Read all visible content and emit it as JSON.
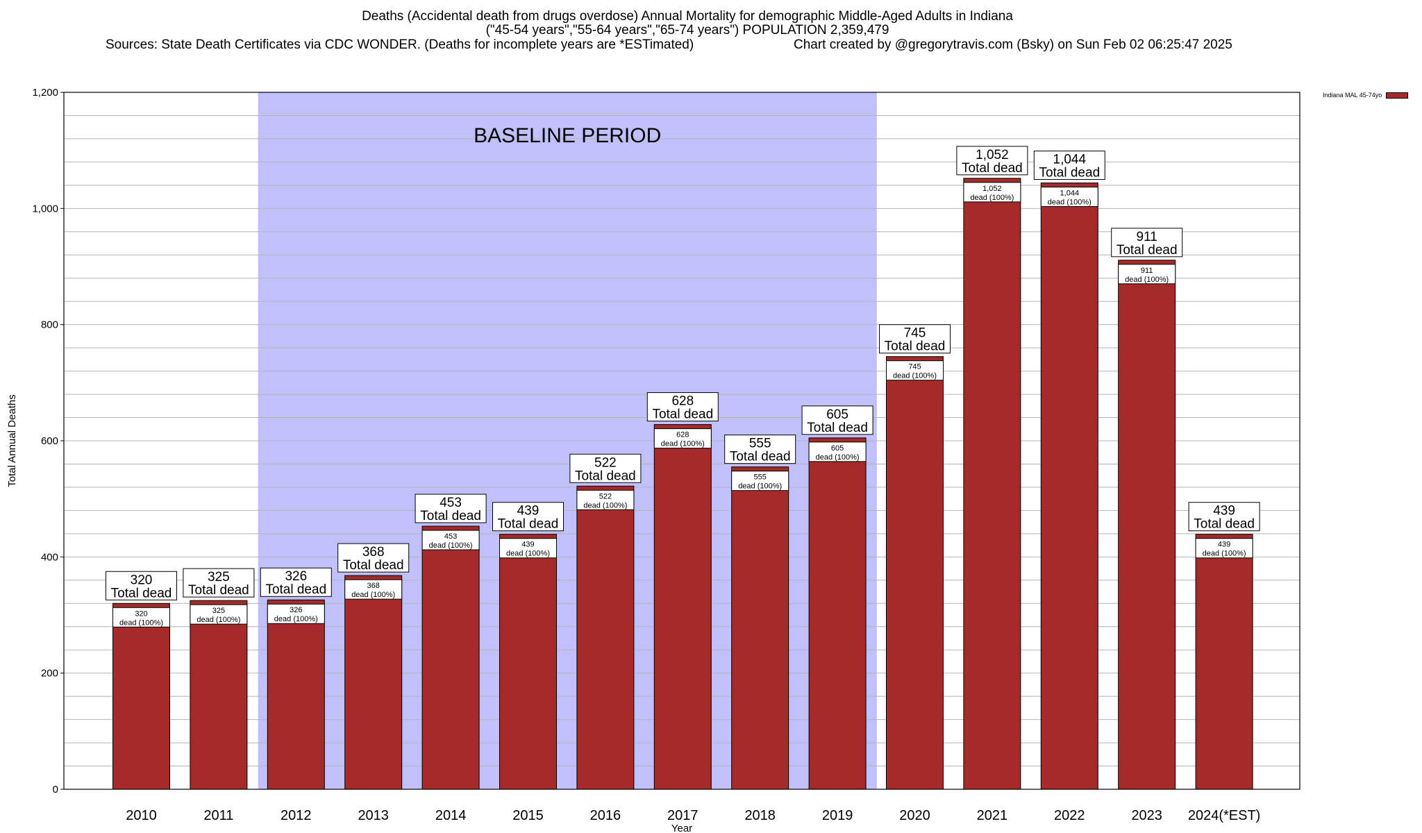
{
  "header": {
    "title_line1": "Deaths (Accidental death from drugs overdose) Annual Mortality for demographic Middle-Aged Adults in Indiana",
    "title_line2": "(\"45-54 years\",\"55-64 years\",\"65-74 years\") POPULATION 2,359,479",
    "sources": "Sources: State Death Certificates via CDC WONDER. (Deaths for incomplete years are *ESTimated)",
    "credit": "Chart created by @gregorytravis.com (Bsky) on Sun Feb 02 06:25:47 2025"
  },
  "legend": {
    "label": "Indiana MAL 45-74yo",
    "color": "#a52a2a"
  },
  "chart_data": {
    "type": "bar",
    "title": "Deaths (Accidental death from drugs overdose) Annual Mortality for demographic Middle-Aged Adults in Indiana",
    "xlabel": "Year",
    "ylabel": "Total Annual Deaths",
    "ylim": [
      0,
      1200
    ],
    "yticks": [
      0,
      200,
      400,
      600,
      800,
      1000,
      1200
    ],
    "ytick_labels": [
      "0",
      "200",
      "400",
      "600",
      "800",
      "1,000",
      "1,200"
    ],
    "grid": true,
    "categories": [
      "2010",
      "2011",
      "2012",
      "2013",
      "2014",
      "2015",
      "2016",
      "2017",
      "2018",
      "2019",
      "2020",
      "2021",
      "2022",
      "2023",
      "2024(*EST)"
    ],
    "values": [
      320,
      325,
      326,
      368,
      453,
      439,
      522,
      628,
      555,
      605,
      745,
      1052,
      1044,
      911,
      439
    ],
    "value_labels": [
      "320",
      "325",
      "326",
      "368",
      "453",
      "439",
      "522",
      "628",
      "555",
      "605",
      "745",
      "1,052",
      "1,044",
      "911",
      "439"
    ],
    "total_label": "Total dead",
    "inner_label": "dead (100%)",
    "bar_color": "#a52a2a",
    "shaded_region": {
      "label": "BASELINE PERIOD",
      "from_index": 2,
      "to_index": 9,
      "color": "#c0c0fc"
    }
  }
}
